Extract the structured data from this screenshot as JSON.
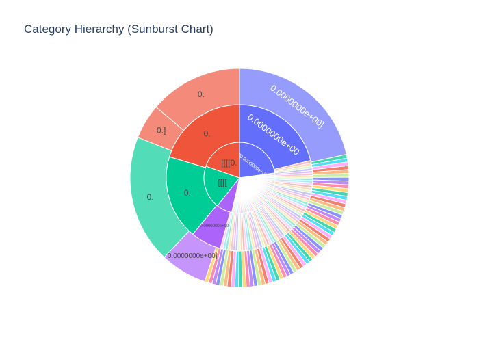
{
  "chart_data": {
    "type": "sunburst",
    "title": "Category Hierarchy (Sunburst Chart)",
    "center": "",
    "colors": {
      "blue": "#636efa",
      "red": "#ef553b",
      "green": "#00cc96",
      "purple": "#ab63fa",
      "orange": "#ffa15a",
      "cyan": "#19d3f3",
      "pink": "#ff6692",
      "lime": "#b6e880",
      "magenta": "#ff97ff",
      "yellow": "#fecb52"
    },
    "rings": [
      {
        "name": "level-1",
        "segments": [
          {
            "label": "[[[[0.0000000e+00",
            "value": 29,
            "color": "#636efa",
            "text_color": "#ffffff"
          },
          {
            "label": "",
            "value": 39,
            "color": "#mixed",
            "text_color": "#444444"
          },
          {
            "label": "",
            "value": 9,
            "color": "#ab63fa",
            "text_color": "#444444"
          },
          {
            "label": "[[[[",
            "value": 25,
            "color": "#00cc96",
            "text_color": "#444444"
          },
          {
            "label": "[[[[0.",
            "value": 25,
            "color": "#ef553b",
            "text_color": "#444444"
          }
        ]
      },
      {
        "name": "level-2",
        "segments": [
          {
            "label": "0.0000000e+00",
            "value": 25,
            "color": "#636efa",
            "text_color": "#ffffff"
          },
          {
            "label": "",
            "value": 39,
            "color": "#mixed",
            "text_color": "#444444"
          },
          {
            "label": "0.0000000e+00",
            "value": 8,
            "color": "#ab63fa",
            "text_color": "#444444"
          },
          {
            "label": "0.",
            "value": 22,
            "color": "#00cc96",
            "text_color": "#444444"
          },
          {
            "label": "0.",
            "value": 24,
            "color": "#ef553b",
            "text_color": "#444444"
          }
        ]
      },
      {
        "name": "level-3",
        "segments": [
          {
            "label": "0.0000000e+00]",
            "value": 25,
            "color": "#636efa",
            "text_color": "#ffffff"
          },
          {
            "label": "",
            "value": 39,
            "color": "#mixed",
            "text_color": "#444444"
          },
          {
            "label": "0.0000000e+00]",
            "value": 8,
            "color": "#ab63fa",
            "text_color": "#444444"
          },
          {
            "label": "0.",
            "value": 22,
            "color": "#00cc96",
            "text_color": "#444444"
          },
          {
            "label": "0.]",
            "value": 6,
            "color": "#ef553b",
            "text_color": "#444444"
          },
          {
            "label": "0.",
            "value": 16,
            "color": "#ef553b",
            "text_color": "#444444"
          }
        ]
      }
    ]
  }
}
